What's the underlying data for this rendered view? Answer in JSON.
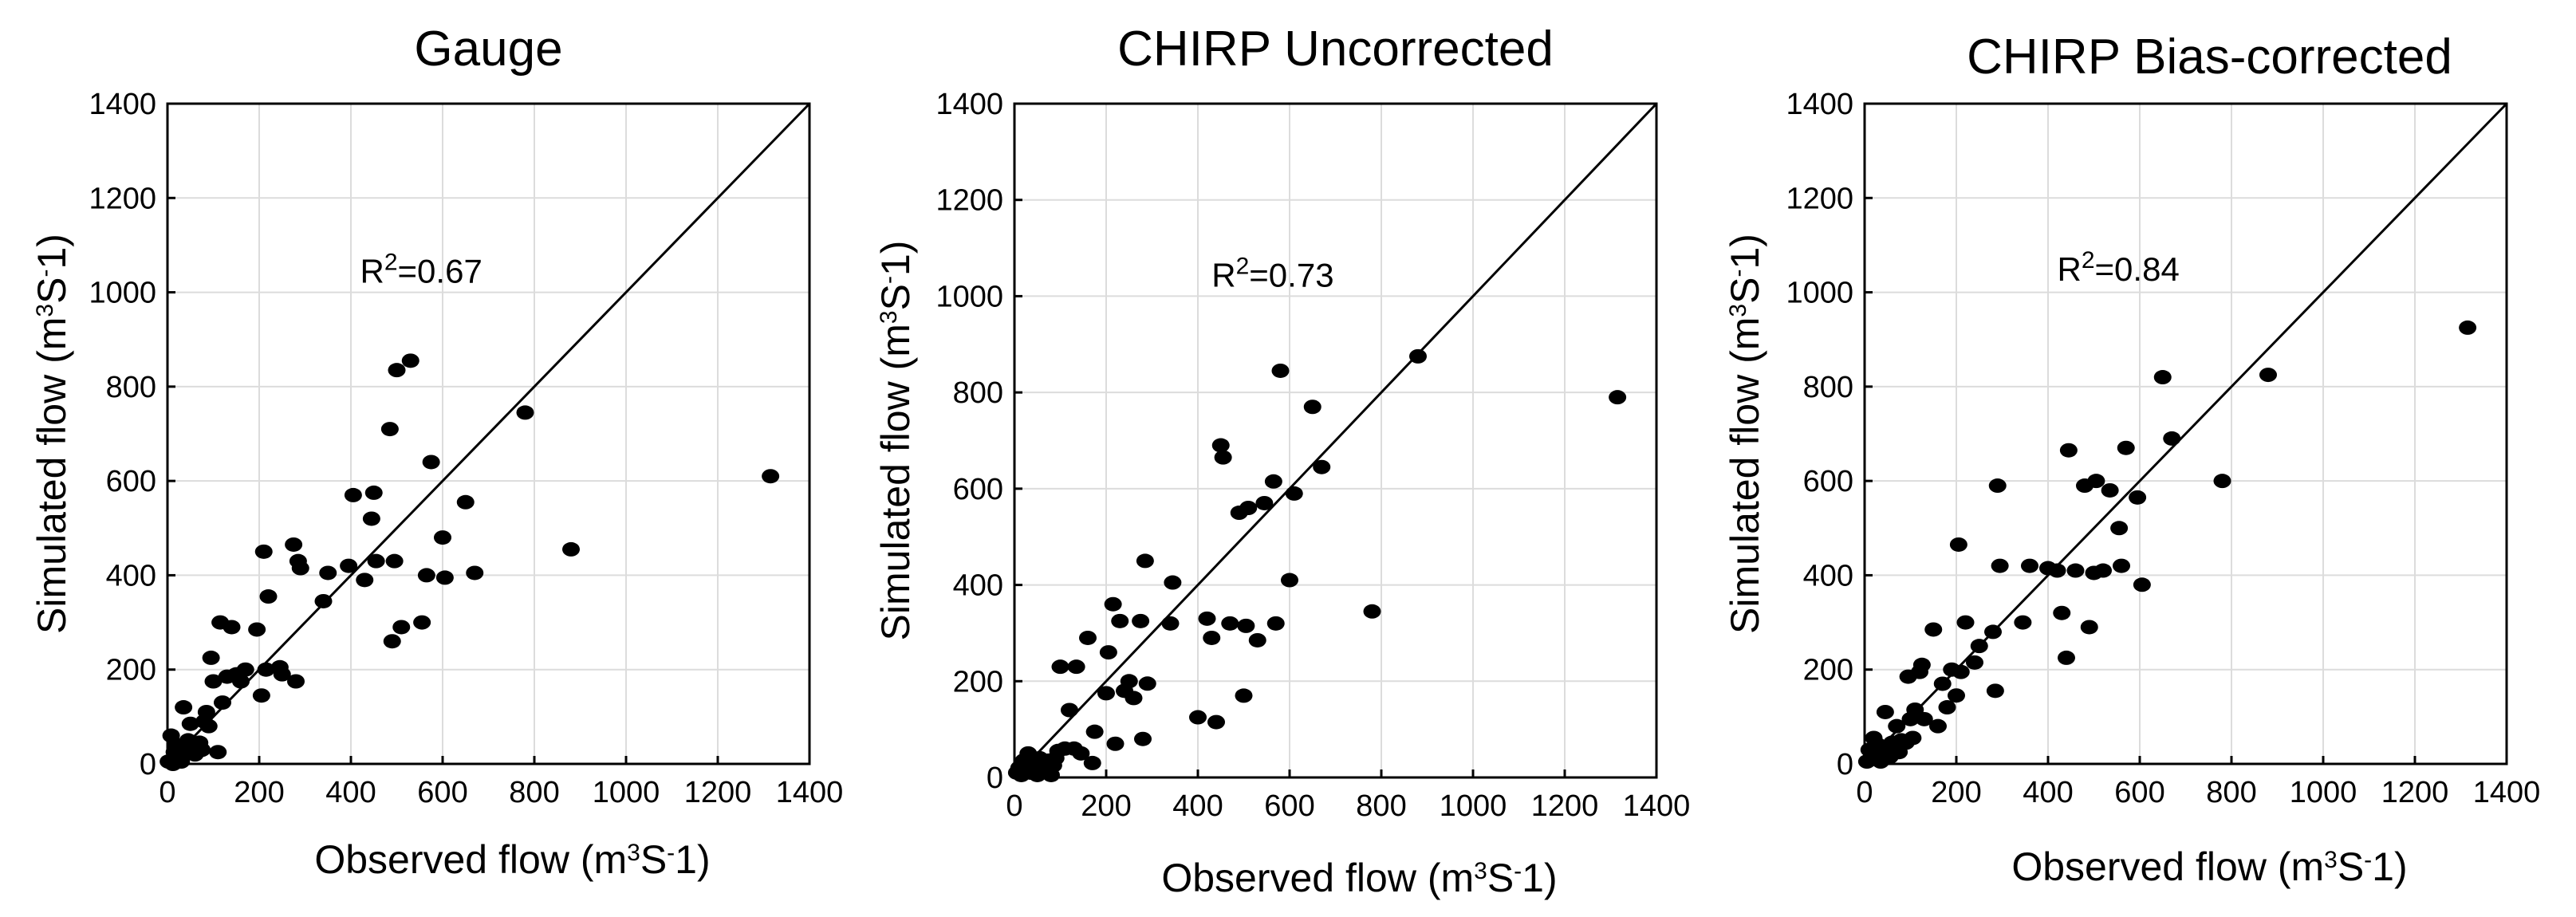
{
  "chart_data": [
    {
      "type": "scatter",
      "title": "Gauge",
      "xlabel": "Observed flow",
      "xunit": {
        "pre": "m",
        "sup1": "3",
        "mid": "S",
        "sup2": "-",
        "post": "1"
      },
      "ylabel": "Simulated flow",
      "yunit": {
        "pre": "m",
        "sup1": "3",
        "mid": "S",
        "sup2": "-",
        "post": "1"
      },
      "xlim": [
        0,
        1400
      ],
      "ylim": [
        0,
        1400
      ],
      "xticks": [
        0,
        200,
        400,
        600,
        800,
        1000,
        1200,
        1400
      ],
      "yticks": [
        0,
        200,
        400,
        600,
        800,
        1000,
        1200,
        1400
      ],
      "grid": true,
      "reference_line": "1:1",
      "annotation": {
        "base": "R",
        "sup": "2",
        "rest": "=0.67",
        "x": 420,
        "y": 1020
      },
      "points": [
        [
          2,
          5
        ],
        [
          8,
          60
        ],
        [
          12,
          0
        ],
        [
          15,
          25
        ],
        [
          18,
          15
        ],
        [
          20,
          40
        ],
        [
          25,
          8
        ],
        [
          28,
          20
        ],
        [
          30,
          5
        ],
        [
          32,
          30
        ],
        [
          35,
          120
        ],
        [
          40,
          30
        ],
        [
          45,
          50
        ],
        [
          50,
          85
        ],
        [
          55,
          40
        ],
        [
          60,
          20
        ],
        [
          65,
          35
        ],
        [
          70,
          45
        ],
        [
          75,
          30
        ],
        [
          80,
          90
        ],
        [
          85,
          110
        ],
        [
          90,
          80
        ],
        [
          95,
          225
        ],
        [
          100,
          175
        ],
        [
          110,
          25
        ],
        [
          115,
          300
        ],
        [
          120,
          130
        ],
        [
          130,
          185
        ],
        [
          140,
          290
        ],
        [
          150,
          190
        ],
        [
          160,
          175
        ],
        [
          170,
          200
        ],
        [
          195,
          285
        ],
        [
          205,
          145
        ],
        [
          210,
          450
        ],
        [
          215,
          200
        ],
        [
          220,
          355
        ],
        [
          245,
          205
        ],
        [
          250,
          190
        ],
        [
          275,
          465
        ],
        [
          280,
          175
        ],
        [
          285,
          430
        ],
        [
          290,
          415
        ],
        [
          340,
          345
        ],
        [
          350,
          405
        ],
        [
          395,
          420
        ],
        [
          405,
          570
        ],
        [
          430,
          390
        ],
        [
          445,
          520
        ],
        [
          450,
          575
        ],
        [
          455,
          430
        ],
        [
          485,
          710
        ],
        [
          490,
          260
        ],
        [
          495,
          430
        ],
        [
          500,
          835
        ],
        [
          510,
          290
        ],
        [
          530,
          855
        ],
        [
          555,
          300
        ],
        [
          565,
          400
        ],
        [
          575,
          640
        ],
        [
          600,
          480
        ],
        [
          605,
          395
        ],
        [
          650,
          555
        ],
        [
          670,
          405
        ],
        [
          780,
          745
        ],
        [
          880,
          455
        ],
        [
          1315,
          610
        ]
      ]
    },
    {
      "type": "scatter",
      "title": "CHIRP Uncorrected",
      "xlabel": "Observed flow",
      "xunit": {
        "pre": "m",
        "sup1": "3",
        "mid": "S",
        "sup2": "-",
        "post": "1"
      },
      "ylabel": "Simulated flow",
      "yunit": {
        "pre": "m",
        "sup1": "3",
        "mid": "S",
        "sup2": "-",
        "post": "1"
      },
      "xlim": [
        0,
        1400
      ],
      "ylim": [
        0,
        1400
      ],
      "xticks": [
        0,
        200,
        400,
        600,
        800,
        1000,
        1200,
        1400
      ],
      "yticks": [
        0,
        200,
        400,
        600,
        800,
        1000,
        1200,
        1400
      ],
      "grid": true,
      "reference_line": "1:1",
      "annotation": {
        "base": "R",
        "sup": "2",
        "rest": "=0.73",
        "x": 430,
        "y": 1020
      },
      "points": [
        [
          5,
          10
        ],
        [
          10,
          20
        ],
        [
          15,
          5
        ],
        [
          20,
          35
        ],
        [
          25,
          15
        ],
        [
          30,
          50
        ],
        [
          35,
          10
        ],
        [
          40,
          25
        ],
        [
          45,
          30
        ],
        [
          50,
          5
        ],
        [
          55,
          40
        ],
        [
          60,
          15
        ],
        [
          65,
          20
        ],
        [
          70,
          10
        ],
        [
          75,
          35
        ],
        [
          80,
          5
        ],
        [
          85,
          25
        ],
        [
          90,
          40
        ],
        [
          95,
          55
        ],
        [
          100,
          230
        ],
        [
          110,
          60
        ],
        [
          120,
          140
        ],
        [
          130,
          60
        ],
        [
          135,
          230
        ],
        [
          145,
          50
        ],
        [
          160,
          290
        ],
        [
          170,
          30
        ],
        [
          175,
          95
        ],
        [
          200,
          175
        ],
        [
          205,
          260
        ],
        [
          215,
          360
        ],
        [
          220,
          70
        ],
        [
          230,
          325
        ],
        [
          240,
          180
        ],
        [
          250,
          200
        ],
        [
          260,
          165
        ],
        [
          275,
          325
        ],
        [
          280,
          80
        ],
        [
          285,
          450
        ],
        [
          290,
          195
        ],
        [
          340,
          320
        ],
        [
          345,
          405
        ],
        [
          400,
          125
        ],
        [
          420,
          330
        ],
        [
          430,
          290
        ],
        [
          440,
          115
        ],
        [
          450,
          690
        ],
        [
          455,
          665
        ],
        [
          470,
          320
        ],
        [
          490,
          550
        ],
        [
          500,
          170
        ],
        [
          505,
          315
        ],
        [
          510,
          560
        ],
        [
          530,
          285
        ],
        [
          545,
          570
        ],
        [
          565,
          615
        ],
        [
          570,
          320
        ],
        [
          580,
          845
        ],
        [
          600,
          410
        ],
        [
          610,
          590
        ],
        [
          650,
          770
        ],
        [
          670,
          645
        ],
        [
          780,
          345
        ],
        [
          880,
          875
        ],
        [
          1315,
          790
        ]
      ]
    },
    {
      "type": "scatter",
      "title": "CHIRP Bias-corrected",
      "xlabel": "Observed flow",
      "xunit": {
        "pre": "m",
        "sup1": "3",
        "mid": "S",
        "sup2": "-",
        "post": "1"
      },
      "ylabel": "Simulated flow",
      "yunit": {
        "pre": "m",
        "sup1": "3",
        "mid": "S",
        "sup2": "-",
        "post": "1"
      },
      "xlim": [
        0,
        1400
      ],
      "ylim": [
        0,
        1400
      ],
      "xticks": [
        0,
        200,
        400,
        600,
        800,
        1000,
        1200,
        1400
      ],
      "yticks": [
        0,
        200,
        400,
        600,
        800,
        1000,
        1200,
        1400
      ],
      "grid": true,
      "reference_line": "1:1",
      "annotation": {
        "base": "R",
        "sup": "2",
        "rest": "=0.84",
        "x": 420,
        "y": 1025
      },
      "points": [
        [
          5,
          5
        ],
        [
          10,
          30
        ],
        [
          15,
          15
        ],
        [
          20,
          55
        ],
        [
          25,
          10
        ],
        [
          30,
          40
        ],
        [
          35,
          5
        ],
        [
          40,
          20
        ],
        [
          45,
          110
        ],
        [
          50,
          30
        ],
        [
          55,
          15
        ],
        [
          60,
          45
        ],
        [
          65,
          35
        ],
        [
          70,
          80
        ],
        [
          75,
          25
        ],
        [
          80,
          50
        ],
        [
          90,
          45
        ],
        [
          95,
          185
        ],
        [
          100,
          95
        ],
        [
          105,
          55
        ],
        [
          110,
          115
        ],
        [
          120,
          195
        ],
        [
          125,
          210
        ],
        [
          130,
          95
        ],
        [
          150,
          285
        ],
        [
          160,
          80
        ],
        [
          170,
          170
        ],
        [
          180,
          120
        ],
        [
          190,
          200
        ],
        [
          200,
          145
        ],
        [
          205,
          465
        ],
        [
          210,
          195
        ],
        [
          220,
          300
        ],
        [
          240,
          215
        ],
        [
          250,
          250
        ],
        [
          280,
          280
        ],
        [
          285,
          155
        ],
        [
          290,
          590
        ],
        [
          295,
          420
        ],
        [
          345,
          300
        ],
        [
          360,
          420
        ],
        [
          400,
          415
        ],
        [
          420,
          410
        ],
        [
          430,
          320
        ],
        [
          440,
          225
        ],
        [
          445,
          665
        ],
        [
          460,
          410
        ],
        [
          480,
          590
        ],
        [
          490,
          290
        ],
        [
          500,
          405
        ],
        [
          505,
          600
        ],
        [
          520,
          410
        ],
        [
          535,
          580
        ],
        [
          555,
          500
        ],
        [
          560,
          420
        ],
        [
          570,
          670
        ],
        [
          595,
          565
        ],
        [
          605,
          380
        ],
        [
          650,
          820
        ],
        [
          670,
          690
        ],
        [
          780,
          600
        ],
        [
          880,
          825
        ],
        [
          1315,
          925
        ]
      ]
    }
  ]
}
